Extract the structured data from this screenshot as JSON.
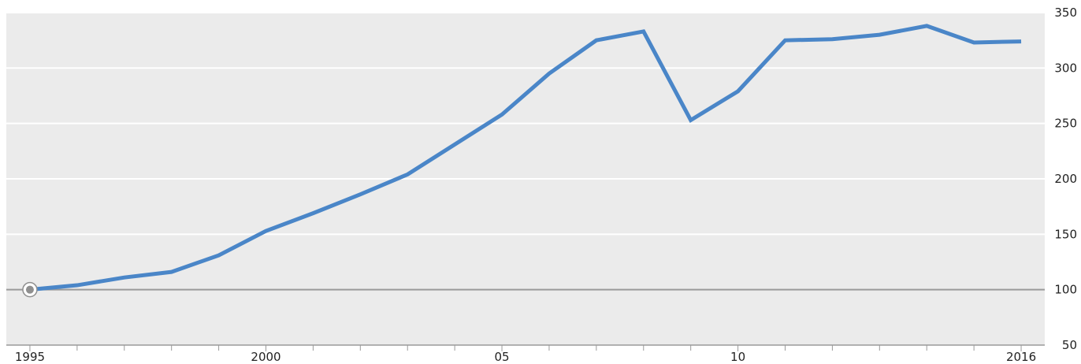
{
  "chart_data": {
    "type": "line",
    "title": "",
    "xlabel": "",
    "ylabel": "",
    "x": [
      1995,
      1996,
      1997,
      1998,
      1999,
      2000,
      2001,
      2002,
      2003,
      2004,
      2005,
      2006,
      2007,
      2008,
      2009,
      2010,
      2011,
      2012,
      2013,
      2014,
      2015,
      2016
    ],
    "series": [
      {
        "values": [
          100,
          104,
          111,
          116,
          131,
          153,
          169,
          186,
          204,
          231,
          258,
          295,
          325,
          333,
          253,
          279,
          325,
          326,
          330,
          338,
          323,
          324
        ]
      }
    ],
    "xlim": [
      1994.5,
      2016.5
    ],
    "ylim": [
      50,
      350
    ],
    "y_ticks": [
      "50",
      "100",
      "150",
      "200",
      "250",
      "300",
      "350"
    ],
    "x_ticks": [
      {
        "year": 1995,
        "label": "1995"
      },
      {
        "year": 2000,
        "label": "2000"
      },
      {
        "year": 2005,
        "label": "05"
      },
      {
        "year": 2010,
        "label": "10"
      },
      {
        "year": 2016,
        "label": "2016"
      }
    ],
    "baseline": 100,
    "grid": true,
    "y_axis_position": "right",
    "colors": {
      "plot_background": "#ebebeb",
      "grid": "#ffffff",
      "line": "#4a86c8",
      "baseline": "#9a9a9a",
      "marker": "#8f8f8f"
    }
  }
}
